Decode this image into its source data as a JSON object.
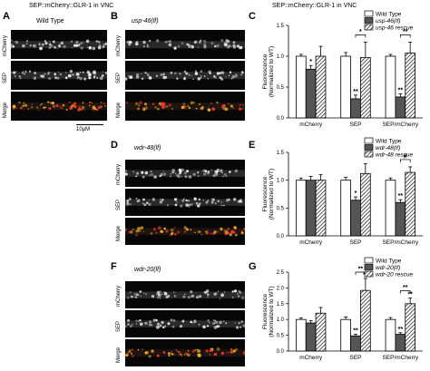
{
  "figure": {
    "left_title": "SEP::mCherry::GLR-1 in VNC",
    "right_title": "SEP::mCherry::GLR-1 in VNC",
    "scale_bar": "10μM",
    "channels": [
      "mCherry",
      "SEP",
      "Merge"
    ],
    "panels": {
      "A": {
        "label": "A",
        "title": "Wild Type"
      },
      "B": {
        "label": "B",
        "title": "usp-46(lf)"
      },
      "D": {
        "label": "D",
        "title": "wdr-48(lf)"
      },
      "F": {
        "label": "F",
        "title": "wdr-20(lf)"
      },
      "C": {
        "label": "C"
      },
      "E": {
        "label": "E"
      },
      "G": {
        "label": "G"
      }
    }
  },
  "colors": {
    "wild_type": "#ffffff",
    "mutant": "#555555",
    "rescue": "hatched",
    "mcherry": "#ff3a2a",
    "sep": "#e8e8e8",
    "merge": "#e89a2a"
  },
  "chart_data": [
    {
      "panel": "C",
      "type": "bar",
      "ylabel": "Fluorescence (Normalized to WT)",
      "ylim": [
        0,
        1.5
      ],
      "yticks": [
        "0.0",
        "0.5",
        "1.0",
        "1.5"
      ],
      "categories": [
        "mCherry",
        "SEP",
        "SEP/mCherry"
      ],
      "series": [
        {
          "name": "Wild Type",
          "values": [
            1.0,
            1.0,
            1.0
          ],
          "errors": [
            0.03,
            0.06,
            0.03
          ]
        },
        {
          "name": "usp-46(lf)",
          "values": [
            0.79,
            0.31,
            0.34
          ],
          "errors": [
            0.06,
            0.06,
            0.05
          ]
        },
        {
          "name": "usp-46 rescue",
          "values": [
            1.0,
            0.98,
            1.05
          ],
          "errors": [
            0.16,
            0.25,
            0.18
          ]
        }
      ],
      "annotations": [
        {
          "category": 0,
          "series": 1,
          "text": "*"
        },
        {
          "category": 1,
          "series": 1,
          "text": "**"
        },
        {
          "category": 2,
          "series": 1,
          "text": "**"
        },
        {
          "category": 1,
          "from": 1,
          "to": 2,
          "text": "*"
        },
        {
          "category": 2,
          "from": 1,
          "to": 2,
          "text": "**"
        }
      ]
    },
    {
      "panel": "E",
      "type": "bar",
      "ylabel": "Fluorescence (Normalized to WT)",
      "ylim": [
        0,
        1.5
      ],
      "yticks": [
        "0.0",
        "0.5",
        "1.0",
        "1.5"
      ],
      "categories": [
        "mCherry",
        "SEP",
        "SEP/mCherry"
      ],
      "series": [
        {
          "name": "Wild Type",
          "values": [
            1.0,
            1.0,
            1.0
          ],
          "errors": [
            0.04,
            0.05,
            0.04
          ]
        },
        {
          "name": "wdr-48(lf)",
          "values": [
            1.0,
            0.64,
            0.6
          ],
          "errors": [
            0.07,
            0.06,
            0.05
          ]
        },
        {
          "name": "wdr-48 rescue",
          "values": [
            1.0,
            1.12,
            1.14
          ],
          "errors": [
            0.1,
            0.18,
            0.1
          ]
        }
      ],
      "annotations": [
        {
          "category": 1,
          "series": 1,
          "text": "*"
        },
        {
          "category": 2,
          "series": 1,
          "text": "**"
        },
        {
          "category": 2,
          "from": 1,
          "to": 2,
          "text": "#"
        }
      ]
    },
    {
      "panel": "G",
      "type": "bar",
      "ylabel": "Fluorescence (Normalized to WT)",
      "ylim": [
        0,
        2.5
      ],
      "yticks": [
        "0.0",
        "0.5",
        "1.0",
        "1.5",
        "2.0",
        "2.5"
      ],
      "categories": [
        "mCherry",
        "SEP",
        "SEP/mCherry"
      ],
      "series": [
        {
          "name": "Wild Type",
          "values": [
            1.0,
            1.0,
            1.0
          ],
          "errors": [
            0.05,
            0.08,
            0.06
          ]
        },
        {
          "name": "wdr-20(lf)",
          "values": [
            0.89,
            0.48,
            0.53
          ],
          "errors": [
            0.07,
            0.05,
            0.05
          ]
        },
        {
          "name": "wdr-20 rescue",
          "values": [
            1.2,
            1.92,
            1.5
          ],
          "errors": [
            0.18,
            0.38,
            0.18
          ]
        }
      ],
      "annotations": [
        {
          "category": 1,
          "series": 1,
          "text": "**"
        },
        {
          "category": 2,
          "series": 1,
          "text": "**"
        },
        {
          "category": 1,
          "series": 2,
          "text": "**"
        },
        {
          "category": 2,
          "series": 2,
          "text": "**"
        },
        {
          "category": 1,
          "from": 1,
          "to": 2,
          "text": "**"
        },
        {
          "category": 2,
          "from": 1,
          "to": 2,
          "text": "**"
        }
      ]
    }
  ]
}
